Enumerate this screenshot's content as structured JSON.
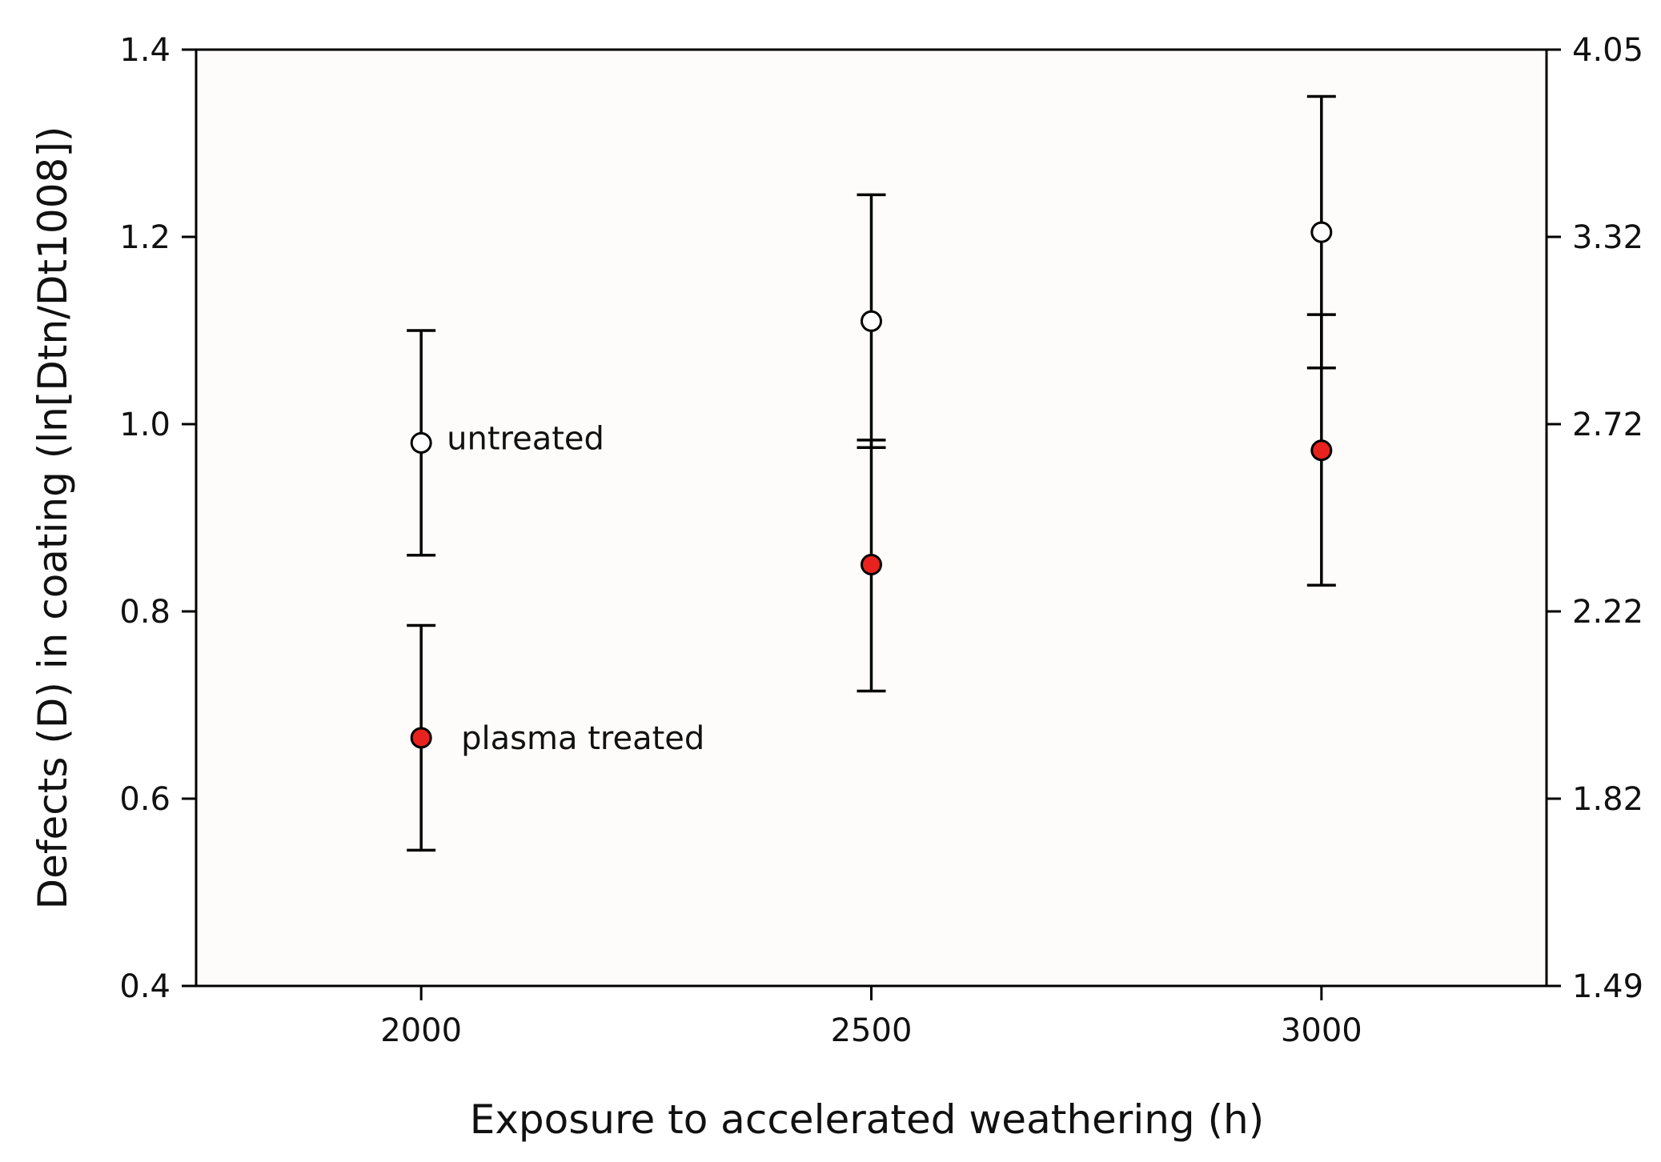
{
  "chart_data": {
    "type": "scatter",
    "xlabel": "Exposure to accelerated weathering (h)",
    "ylabel": "Defects (D) in coating (ln[Dtn/Dt1008])",
    "x_ticks": [
      2000,
      2500,
      3000
    ],
    "xlim": [
      1750,
      3250
    ],
    "ylim": [
      0.4,
      1.4
    ],
    "y_ticks": [
      0.4,
      0.6,
      0.8,
      1.0,
      1.2,
      1.4
    ],
    "y_tick_labels": [
      "0.4",
      "0.6",
      "0.8",
      "1.0",
      "1.2",
      "1.4"
    ],
    "y2_tick_labels": [
      "1.49",
      "1.82",
      "2.22",
      "2.72",
      "3.32",
      "4.05"
    ],
    "grid": false,
    "legend": "none",
    "series": [
      {
        "name": "untreated",
        "marker_color": "#ffffff",
        "points": [
          {
            "x": 2000,
            "y": 0.98,
            "err_low": 0.86,
            "err_high": 1.1
          },
          {
            "x": 2500,
            "y": 1.11,
            "err_low": 0.975,
            "err_high": 1.245
          },
          {
            "x": 3000,
            "y": 1.205,
            "err_low": 1.06,
            "err_high": 1.35
          }
        ]
      },
      {
        "name": "plasma treated",
        "marker_color": "#e8231f",
        "points": [
          {
            "x": 2000,
            "y": 0.665,
            "err_low": 0.545,
            "err_high": 0.785
          },
          {
            "x": 2500,
            "y": 0.85,
            "err_low": 0.715,
            "err_high": 0.983
          },
          {
            "x": 3000,
            "y": 0.972,
            "err_low": 0.828,
            "err_high": 1.117
          }
        ]
      }
    ]
  }
}
